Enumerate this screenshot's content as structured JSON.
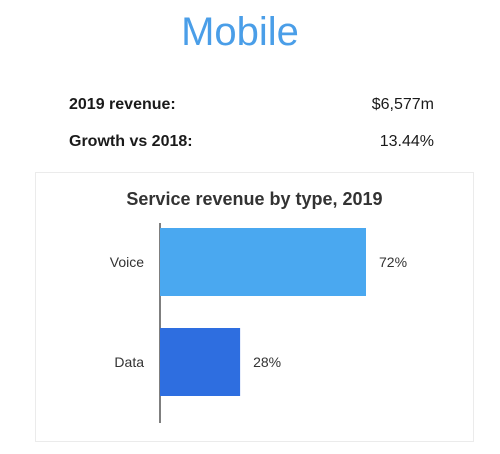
{
  "header": {
    "title": "Mobile"
  },
  "stats": [
    {
      "label": "2019 revenue:",
      "value": "$6,577m"
    },
    {
      "label": "Growth vs 2018:",
      "value": "13.44%"
    }
  ],
  "chart_data": {
    "type": "bar",
    "orientation": "horizontal",
    "title": "Service revenue by type, 2019",
    "categories": [
      "Voice",
      "Data"
    ],
    "values": [
      72,
      28
    ],
    "value_labels": [
      "72%",
      "28%"
    ],
    "colors": [
      "#4aa8f0",
      "#2e6ee0"
    ],
    "xlim": [
      0,
      72
    ],
    "grid": false,
    "legend": "none"
  }
}
